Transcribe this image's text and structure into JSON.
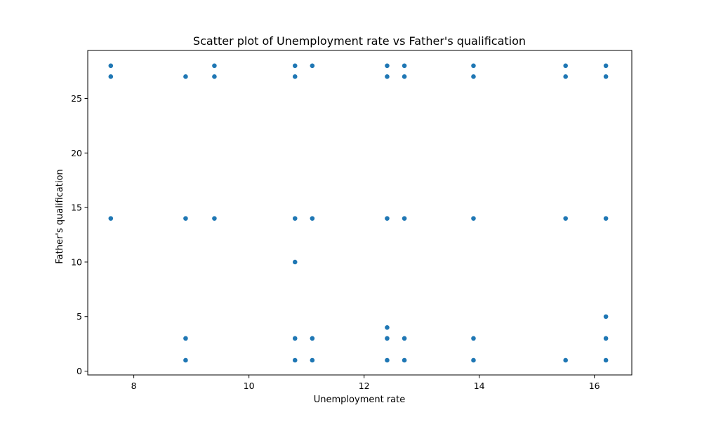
{
  "chart_data": {
    "type": "scatter",
    "title": "Scatter plot of Unemployment rate vs Father's qualification",
    "xlabel": "Unemployment rate",
    "ylabel": "Father's qualification",
    "xlim": [
      7.2,
      16.65
    ],
    "ylim": [
      -0.35,
      29.4
    ],
    "xticks": [
      8,
      10,
      12,
      14,
      16
    ],
    "yticks": [
      0,
      5,
      10,
      15,
      20,
      25
    ],
    "grid": false,
    "marker_color": "#1f77b4",
    "series": [
      {
        "points": [
          [
            7.6,
            28
          ],
          [
            7.6,
            27
          ],
          [
            7.6,
            14
          ],
          [
            8.9,
            27
          ],
          [
            8.9,
            14
          ],
          [
            8.9,
            3
          ],
          [
            8.9,
            1
          ],
          [
            9.4,
            28
          ],
          [
            9.4,
            27
          ],
          [
            9.4,
            14
          ],
          [
            10.8,
            28
          ],
          [
            10.8,
            27
          ],
          [
            10.8,
            14
          ],
          [
            10.8,
            10
          ],
          [
            10.8,
            3
          ],
          [
            10.8,
            1
          ],
          [
            11.1,
            28
          ],
          [
            11.1,
            14
          ],
          [
            11.1,
            3
          ],
          [
            11.1,
            1
          ],
          [
            12.4,
            28
          ],
          [
            12.4,
            27
          ],
          [
            12.4,
            14
          ],
          [
            12.4,
            4
          ],
          [
            12.4,
            3
          ],
          [
            12.4,
            1
          ],
          [
            12.7,
            28
          ],
          [
            12.7,
            27
          ],
          [
            12.7,
            14
          ],
          [
            12.7,
            3
          ],
          [
            12.7,
            1
          ],
          [
            13.9,
            28
          ],
          [
            13.9,
            27
          ],
          [
            13.9,
            14
          ],
          [
            13.9,
            3
          ],
          [
            13.9,
            1
          ],
          [
            15.5,
            28
          ],
          [
            15.5,
            27
          ],
          [
            15.5,
            14
          ],
          [
            15.5,
            1
          ],
          [
            16.2,
            28
          ],
          [
            16.2,
            27
          ],
          [
            16.2,
            14
          ],
          [
            16.2,
            5
          ],
          [
            16.2,
            3
          ],
          [
            16.2,
            1
          ]
        ]
      }
    ]
  }
}
